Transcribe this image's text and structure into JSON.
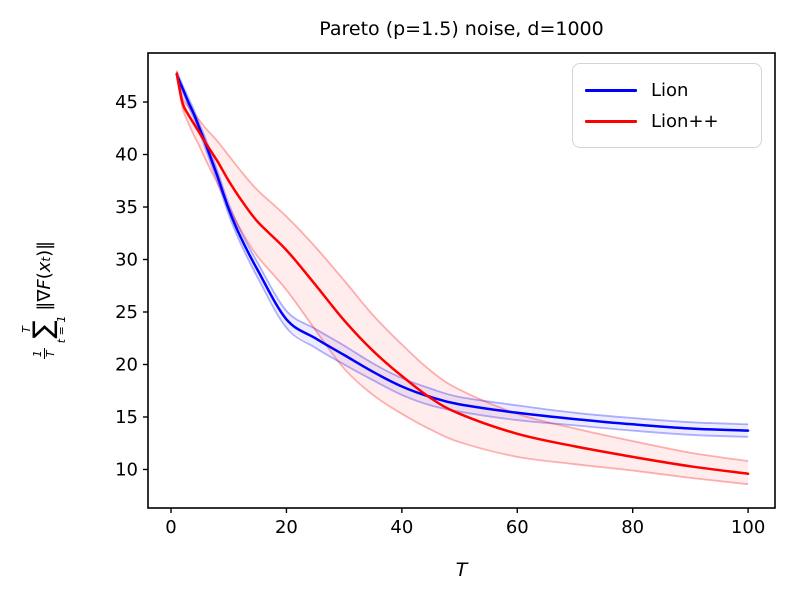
{
  "figure": {
    "title": "Pareto (p=1.5) noise, d=1000"
  },
  "axes": {
    "xlabel": "T",
    "ylabel_parts": {
      "frac_num": "1",
      "frac_den": "T",
      "sum_upper": "T",
      "sum_symbol": "∑",
      "sum_lower": "t = 1",
      "norm_open": "‖∇",
      "norm_F": "F",
      "paren_open": "(",
      "norm_x": "x",
      "norm_sub": "t",
      "paren_close": ")",
      "norm_close": "‖"
    }
  },
  "legend": {
    "items": [
      {
        "label": "Lion",
        "color": "#0000ff"
      },
      {
        "label": "Lion++",
        "color": "#ff0000"
      }
    ]
  },
  "colors": {
    "lion_line": "#0000ff",
    "lionpp_line": "#ff0000",
    "lion_band": "rgba(0,0,255,0.30)",
    "lionpp_band": "rgba(255,0,0,0.30)",
    "lion_band_fill": "rgba(0,0,255,0.07)",
    "lionpp_band_fill": "rgba(255,0,0,0.07)",
    "spine": "#000000",
    "tick": "#000000"
  },
  "chart_data": {
    "type": "line",
    "title": "Pareto (p=1.5) noise, d=1000",
    "xlabel": "T",
    "ylabel": "(1/T) * sum_{t=1}^{T} ||grad F(x_t)||",
    "legend_position": "upper right",
    "grid": false,
    "xlim": [
      -3.99,
      104.66
    ],
    "ylim": [
      6.33,
      49.67
    ],
    "xticks": [
      0,
      20,
      40,
      60,
      80,
      100
    ],
    "yticks": [
      10,
      15,
      20,
      25,
      30,
      35,
      40,
      45
    ],
    "x": [
      1,
      2,
      3,
      4,
      5,
      6,
      8,
      10,
      12,
      15,
      20,
      25,
      30,
      35,
      40,
      45,
      50,
      60,
      70,
      80,
      90,
      100
    ],
    "series": [
      {
        "name": "Lion",
        "values": [
          47.6,
          46.3,
          45.0,
          43.8,
          42.4,
          41.0,
          38.0,
          34.8,
          32.2,
          29.0,
          24.3,
          22.5,
          20.9,
          19.3,
          17.9,
          16.9,
          16.2,
          15.4,
          14.8,
          14.3,
          13.9,
          13.7
        ],
        "band_upper": [
          47.9,
          46.6,
          45.4,
          44.2,
          42.8,
          41.5,
          38.5,
          35.3,
          32.8,
          29.7,
          25.1,
          23.4,
          21.8,
          20.1,
          18.7,
          17.7,
          16.9,
          16.1,
          15.4,
          14.9,
          14.5,
          14.3
        ],
        "band_lower": [
          47.3,
          46.0,
          44.6,
          43.4,
          42.0,
          40.5,
          37.5,
          34.3,
          31.6,
          28.3,
          23.5,
          21.6,
          20.0,
          18.5,
          17.1,
          16.1,
          15.5,
          14.7,
          14.2,
          13.7,
          13.3,
          13.1
        ]
      },
      {
        "name": "Lion++",
        "values": [
          47.7,
          44.9,
          43.8,
          42.9,
          42.0,
          41.1,
          39.4,
          37.5,
          35.8,
          33.6,
          30.9,
          27.6,
          24.2,
          21.3,
          18.9,
          16.8,
          15.3,
          13.4,
          12.2,
          11.2,
          10.3,
          9.6
        ],
        "band_upper": [
          48.0,
          45.4,
          44.6,
          43.9,
          43.2,
          42.5,
          41.3,
          39.9,
          38.5,
          36.6,
          34.1,
          31.2,
          28.0,
          24.7,
          21.9,
          19.4,
          17.6,
          15.3,
          13.9,
          12.7,
          11.6,
          10.8
        ],
        "band_lower": [
          47.4,
          44.4,
          43.0,
          41.8,
          40.7,
          39.5,
          37.3,
          35.0,
          32.9,
          30.3,
          27.1,
          23.3,
          19.6,
          17.1,
          15.3,
          13.8,
          12.6,
          11.2,
          10.5,
          9.9,
          9.2,
          8.6
        ]
      }
    ]
  }
}
